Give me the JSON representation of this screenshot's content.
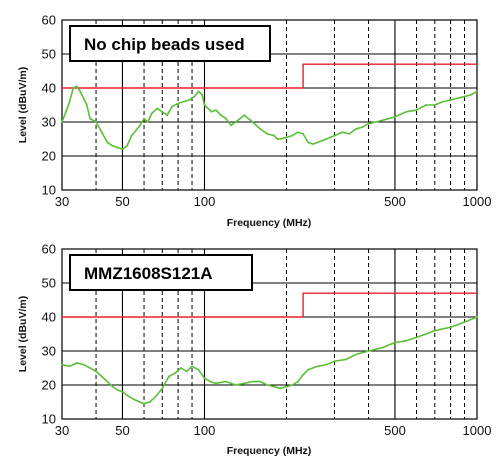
{
  "chart_data": [
    {
      "type": "line",
      "title": "No chip beads used",
      "xlabel": "Frequency (MHz)",
      "ylabel": "Level (dBuV/m)",
      "xscale": "log",
      "xlim": [
        30,
        1000
      ],
      "ylim": [
        10,
        60
      ],
      "grid": true,
      "x_ticks": [
        "30",
        "50",
        "100",
        "500",
        "1000"
      ],
      "y_ticks": [
        "10",
        "20",
        "30",
        "40",
        "50",
        "60"
      ],
      "limit_line": {
        "color": "#e8202a",
        "x": [
          30,
          230,
          230,
          1000
        ],
        "y": [
          40,
          40,
          47,
          47
        ]
      },
      "series": [
        {
          "color": "#5cbf3a",
          "x": [
            30,
            31,
            32,
            33,
            34,
            35,
            37,
            38,
            40,
            42,
            44,
            46,
            48,
            50,
            52,
            54,
            56,
            58,
            60,
            62,
            64,
            67,
            70,
            73,
            76,
            80,
            84,
            88,
            92,
            95,
            98,
            100,
            103,
            106,
            110,
            115,
            120,
            125,
            130,
            135,
            140,
            150,
            160,
            170,
            180,
            185,
            190,
            200,
            210,
            220,
            230,
            240,
            250,
            260,
            270,
            280,
            290,
            300,
            320,
            340,
            360,
            380,
            400,
            450,
            500,
            550,
            600,
            650,
            700,
            750,
            800,
            850,
            900,
            950,
            1000
          ],
          "y": [
            30,
            33,
            36,
            40,
            40.5,
            39,
            35,
            31,
            30,
            27,
            24,
            23,
            22.5,
            22,
            23,
            26,
            27.5,
            29,
            31,
            30,
            32.5,
            34,
            33,
            32,
            34.5,
            35.5,
            36,
            36.5,
            37.5,
            39,
            38,
            35,
            34,
            33,
            33.5,
            32,
            31,
            29,
            30,
            31,
            32,
            30,
            28,
            26.5,
            26,
            25,
            25,
            25.5,
            26,
            27,
            26.5,
            24,
            23.5,
            24,
            24.5,
            25,
            25.5,
            26,
            27,
            26.5,
            28,
            28.5,
            29.5,
            30.5,
            31.5,
            33,
            33.5,
            35,
            35,
            36,
            36.5,
            37,
            37.5,
            38,
            39
          ]
        }
      ]
    },
    {
      "type": "line",
      "title": "MMZ1608S121A",
      "xlabel": "Frequency (MHz)",
      "ylabel": "Level (dBuV/m)",
      "xscale": "log",
      "xlim": [
        30,
        1000
      ],
      "ylim": [
        10,
        60
      ],
      "grid": true,
      "x_ticks": [
        "30",
        "50",
        "100",
        "500",
        "1000"
      ],
      "y_ticks": [
        "10",
        "20",
        "30",
        "40",
        "50",
        "60"
      ],
      "limit_line": {
        "color": "#e8202a",
        "x": [
          30,
          230,
          230,
          1000
        ],
        "y": [
          40,
          40,
          47,
          47
        ]
      },
      "series": [
        {
          "color": "#5cbf3a",
          "x": [
            30,
            32,
            34,
            36,
            38,
            40,
            42,
            44,
            46,
            48,
            50,
            53,
            56,
            60,
            63,
            66,
            70,
            74,
            78,
            82,
            86,
            90,
            95,
            100,
            105,
            110,
            120,
            130,
            140,
            150,
            160,
            170,
            180,
            190,
            200,
            210,
            220,
            230,
            240,
            260,
            280,
            300,
            330,
            360,
            400,
            450,
            500,
            550,
            600,
            650,
            700,
            800,
            900,
            1000
          ],
          "y": [
            26,
            25.5,
            26.5,
            26,
            25,
            24,
            22.5,
            21,
            19.5,
            18.5,
            18,
            16.5,
            15.5,
            14.5,
            15,
            16.5,
            19,
            22.5,
            23.5,
            25,
            24,
            25.5,
            24.5,
            22,
            21,
            20.5,
            21,
            20,
            20.5,
            21,
            21,
            20,
            19.5,
            19,
            19.5,
            20,
            21,
            23,
            24.5,
            25.5,
            26,
            27,
            27.5,
            29,
            30,
            31,
            32.5,
            33,
            34,
            35,
            36,
            37,
            38.5,
            40
          ]
        }
      ]
    }
  ]
}
